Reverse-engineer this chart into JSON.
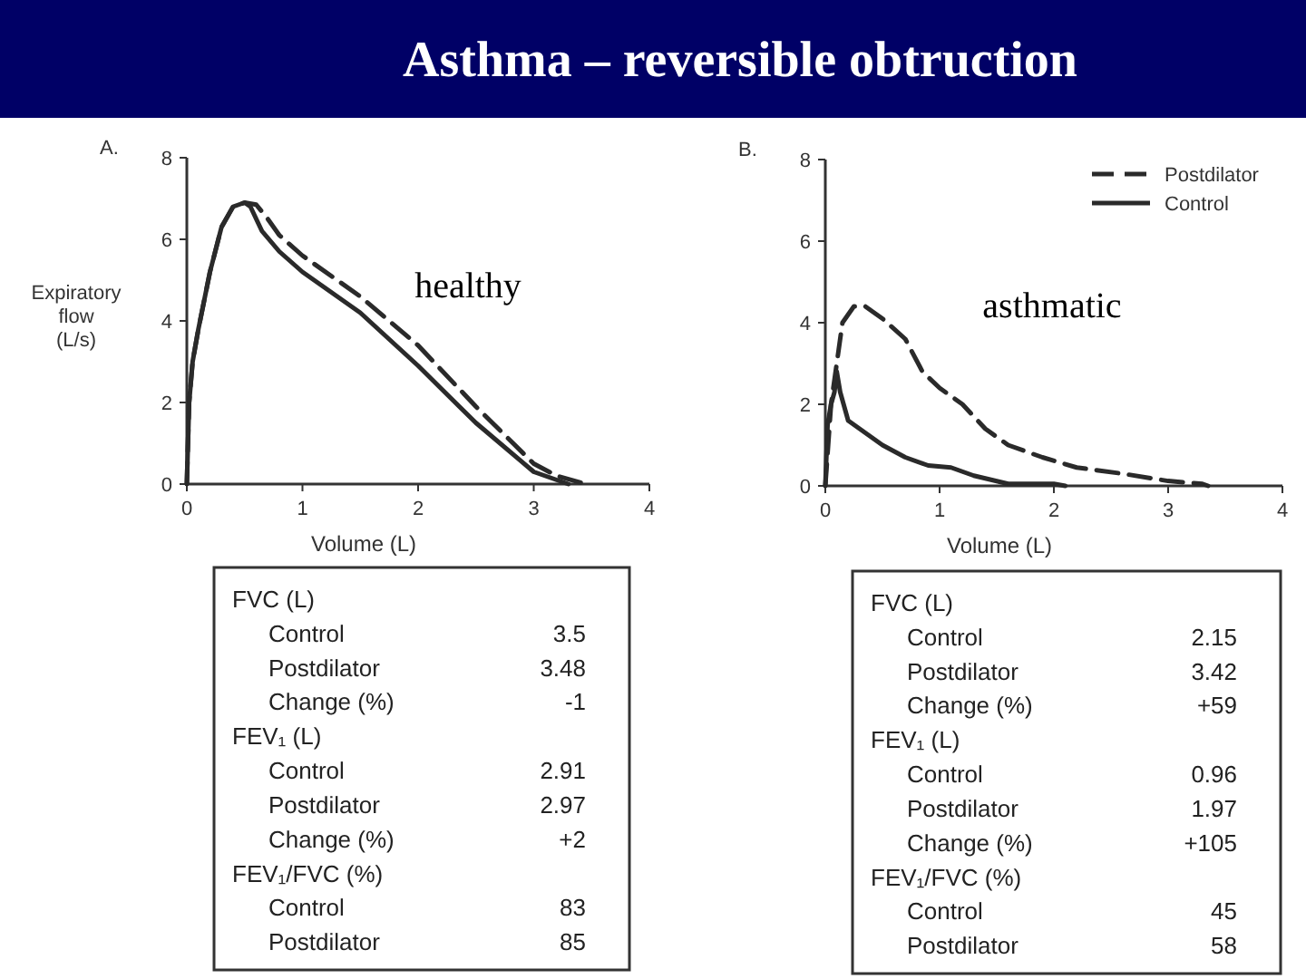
{
  "chart_data": [
    {
      "type": "line",
      "title": "Asthma – reversible obtruction",
      "xlabel": "Volume (L)",
      "ylabel": "Expiratory flow (L/s)",
      "xlim": [
        0,
        4
      ],
      "ylim": [
        0,
        8
      ],
      "xticks": [
        0,
        1,
        2,
        3,
        4
      ],
      "yticks": [
        0,
        2,
        4,
        6,
        8
      ],
      "legend": false,
      "grid": false,
      "series": [
        {
          "color": "#2a2a2a",
          "line_style": "dashed",
          "x": [
            0,
            0.02,
            0.05,
            0.1,
            0.15,
            0.2,
            0.3,
            0.4,
            0.5,
            0.6,
            0.7,
            0.8,
            1.0,
            1.5,
            2.0,
            2.5,
            3.0,
            3.2,
            3.45
          ],
          "values": [
            0,
            2.0,
            3.0,
            3.8,
            4.5,
            5.2,
            6.3,
            6.8,
            6.9,
            6.85,
            6.5,
            6.1,
            5.6,
            4.6,
            3.4,
            1.9,
            0.5,
            0.2,
            0
          ]
        },
        {
          "color": "#2a2a2a",
          "line_style": "solid",
          "x": [
            0,
            0.02,
            0.05,
            0.1,
            0.15,
            0.2,
            0.3,
            0.4,
            0.5,
            0.55,
            0.65,
            0.8,
            1.0,
            1.5,
            2.0,
            2.5,
            3.0,
            3.2,
            3.3
          ],
          "values": [
            0,
            2.0,
            3.0,
            3.8,
            4.5,
            5.2,
            6.3,
            6.8,
            6.9,
            6.8,
            6.2,
            5.7,
            5.2,
            4.2,
            2.9,
            1.5,
            0.3,
            0.1,
            0
          ]
        }
      ],
      "annotations": [
        "A.",
        "healthy",
        "FVC (L)",
        "Control",
        "3.5",
        "Postdilator",
        "3.48",
        "Change (%)",
        "-1",
        "FEV₁ (L)",
        "Control",
        "2.91",
        "Postdilator",
        "2.97",
        "Change (%)",
        "+2",
        "FEV₁/FVC (%)",
        "Control",
        "83",
        "Postdilator",
        "85"
      ]
    },
    {
      "type": "line",
      "xlabel": "Volume (L)",
      "xlim": [
        0,
        4
      ],
      "ylim": [
        0,
        8
      ],
      "xticks": [
        0,
        1,
        2,
        3,
        4
      ],
      "yticks": [
        0,
        2,
        4,
        6,
        8
      ],
      "legend": "top right",
      "grid": false,
      "series": [
        {
          "name": "Postdilator",
          "color": "#2a2a2a",
          "line_style": "dashed",
          "x": [
            0,
            0.05,
            0.1,
            0.15,
            0.25,
            0.35,
            0.5,
            0.7,
            0.85,
            1.0,
            1.2,
            1.4,
            1.6,
            1.9,
            2.2,
            2.6,
            3.0,
            3.3,
            3.35
          ],
          "values": [
            0,
            2.0,
            3.0,
            4.0,
            4.4,
            4.4,
            4.1,
            3.6,
            2.8,
            2.4,
            2.0,
            1.4,
            1.0,
            0.7,
            0.45,
            0.3,
            0.12,
            0.05,
            0
          ]
        },
        {
          "name": "Control",
          "color": "#2a2a2a",
          "line_style": "solid",
          "x": [
            0,
            0.02,
            0.05,
            0.08,
            0.1,
            0.13,
            0.2,
            0.3,
            0.5,
            0.7,
            0.9,
            1.1,
            1.3,
            1.6,
            1.8,
            2.0,
            2.1
          ],
          "values": [
            0,
            1.5,
            2.0,
            2.3,
            2.8,
            2.3,
            1.6,
            1.4,
            1.0,
            0.7,
            0.5,
            0.45,
            0.25,
            0.05,
            0.05,
            0.05,
            0
          ]
        }
      ],
      "annotations": [
        "B.",
        "asthmatic",
        "FVC (L)",
        "Control",
        "2.15",
        "Postdilator",
        "3.42",
        "Change (%)",
        "+59",
        "FEV₁ (L)",
        "Control",
        "0.96",
        "Postdilator",
        "1.97",
        "Change (%)",
        "+105",
        "FEV₁/FVC (%)",
        "Control",
        "45",
        "Postdilator",
        "58"
      ]
    }
  ]
}
